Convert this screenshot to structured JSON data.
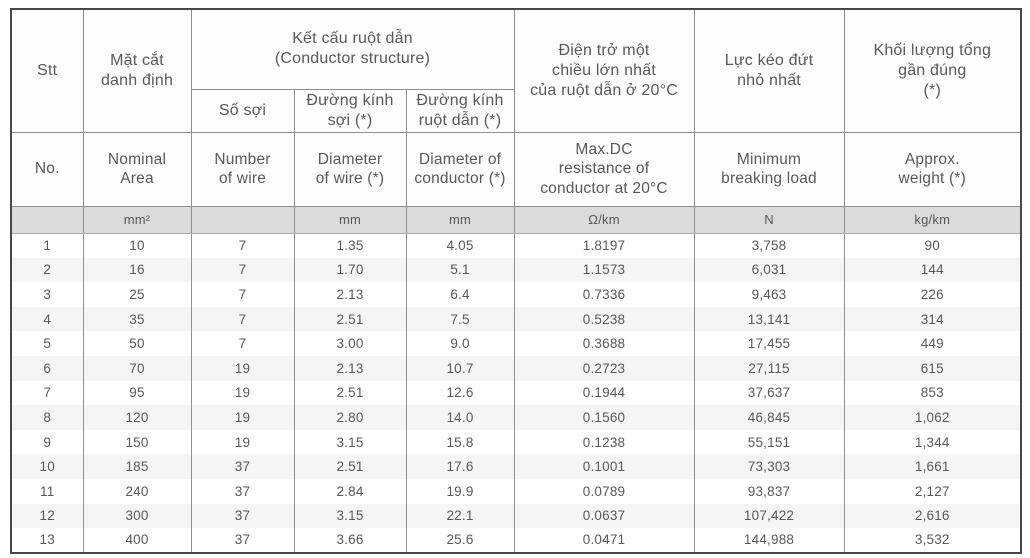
{
  "table": {
    "header_vi": {
      "stt": "Stt",
      "nominal_area": "Mặt cắt\ndanh định",
      "conductor_structure_group": "Kết cấu ruột dẫn\n(Conductor structure)",
      "number_of_wire": "Số sợi",
      "diameter_of_wire": "Đường kính\nsợi (*)",
      "diameter_of_conductor": "Đường kính\nruột dẫn (*)",
      "max_dc_resistance": "Điện trở một\nchiều lớn nhất\ncủa ruột dẫn ở 20°C",
      "min_breaking_load": "Lực kéo đứt\nnhỏ nhất",
      "approx_weight": "Khối lượng tổng\ngần đúng\n(*)"
    },
    "header_en": {
      "no": "No.",
      "nominal_area": "Nominal\nArea",
      "number_of_wire": "Number\nof wire",
      "diameter_of_wire": "Diameter\nof wire (*)",
      "diameter_of_conductor": "Diameter of\nconductor (*)",
      "max_dc_resistance": "Max.DC\nresistance of\nconductor at 20°C",
      "min_breaking_load": "Minimum\nbreaking load",
      "approx_weight": "Approx.\nweight (*)"
    },
    "units": [
      "",
      "mm²",
      "",
      "mm",
      "mm",
      "Ω/km",
      "N",
      "kg/km"
    ],
    "rows": [
      [
        "1",
        "10",
        "7",
        "1.35",
        "4.05",
        "1.8197",
        "3,758",
        "90"
      ],
      [
        "2",
        "16",
        "7",
        "1.70",
        "5.1",
        "1.1573",
        "6,031",
        "144"
      ],
      [
        "3",
        "25",
        "7",
        "2.13",
        "6.4",
        "0.7336",
        "9,463",
        "226"
      ],
      [
        "4",
        "35",
        "7",
        "2.51",
        "7.5",
        "0.5238",
        "13,141",
        "314"
      ],
      [
        "5",
        "50",
        "7",
        "3.00",
        "9.0",
        "0.3688",
        "17,455",
        "449"
      ],
      [
        "6",
        "70",
        "19",
        "2.13",
        "10.7",
        "0.2723",
        "27,115",
        "615"
      ],
      [
        "7",
        "95",
        "19",
        "2.51",
        "12.6",
        "0.1944",
        "37,637",
        "853"
      ],
      [
        "8",
        "120",
        "19",
        "2.80",
        "14.0",
        "0.1560",
        "46,845",
        "1,062"
      ],
      [
        "9",
        "150",
        "19",
        "3.15",
        "15.8",
        "0.1238",
        "55,151",
        "1,344"
      ],
      [
        "10",
        "185",
        "37",
        "2.51",
        "17.6",
        "0.1001",
        "73,303",
        "1,661"
      ],
      [
        "11",
        "240",
        "37",
        "2.84",
        "19.9",
        "0.0789",
        "93,837",
        "2,127"
      ],
      [
        "12",
        "300",
        "37",
        "3.15",
        "22.1",
        "0.0637",
        "107,422",
        "2,616"
      ],
      [
        "13",
        "400",
        "37",
        "3.66",
        "25.6",
        "0.0471",
        "144,988",
        "3,532"
      ]
    ],
    "colors": {
      "text": "#58595b",
      "grid_line": "#8f8f8f",
      "outer_border": "#474747",
      "units_row_bg": "#dbdbdb",
      "stripe_bg": "#f5f5f6"
    }
  }
}
